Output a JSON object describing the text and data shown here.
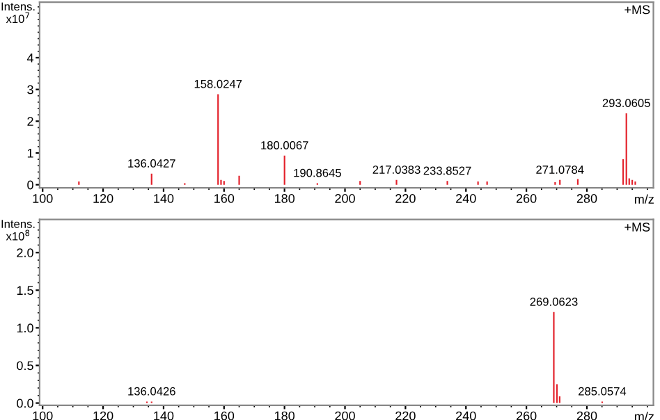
{
  "chart_data": [
    {
      "type": "bar",
      "color": "#e3212b",
      "x": [
        112,
        136.0427,
        147,
        158.0247,
        159,
        160,
        165,
        180.0067,
        190.8645,
        205,
        217.0383,
        233.8527,
        244,
        247,
        269.5,
        271.0784,
        277,
        292,
        293.0605,
        294,
        295,
        296
      ],
      "values": [
        0.1,
        0.35,
        0.05,
        2.85,
        0.15,
        0.12,
        0.28,
        0.92,
        0.05,
        0.12,
        0.15,
        0.12,
        0.1,
        0.1,
        0.08,
        0.15,
        0.18,
        0.8,
        2.25,
        0.2,
        0.15,
        0.1
      ],
      "xlim": [
        99,
        302
      ],
      "ylim": [
        -0.1,
        5.75
      ],
      "xticks": [
        100,
        120,
        140,
        160,
        180,
        200,
        220,
        240,
        260,
        280
      ],
      "yticks": [
        0,
        1,
        2,
        3,
        4
      ],
      "ylabel": "Intens.\nx10$^{7}$",
      "xlabel": "m/z",
      "annotations": [
        "+MS",
        {
          "text": "136.0427",
          "x": 136.0427,
          "y": 0.35
        },
        {
          "text": "158.0247",
          "x": 158.0247,
          "y": 2.85
        },
        {
          "text": "180.0067",
          "x": 180.0067,
          "y": 0.92
        },
        {
          "text": "190.8645",
          "x": 190.8645,
          "y": 0.05
        },
        {
          "text": "217.0383",
          "x": 217.0383,
          "y": 0.15
        },
        {
          "text": "233.8527",
          "x": 233.8527,
          "y": 0.12
        },
        {
          "text": "271.0784",
          "x": 271.0784,
          "y": 0.15
        },
        {
          "text": "293.0605",
          "x": 293.0605,
          "y": 2.25
        }
      ]
    },
    {
      "type": "bar",
      "color": "#e3212b",
      "x": [
        134.5,
        136.0426,
        269.0623,
        270.1,
        271.0,
        285.0574
      ],
      "values": [
        0.02,
        0.02,
        1.21,
        0.25,
        0.09,
        0.02
      ],
      "xlim": [
        99,
        302
      ],
      "ylim": [
        -0.03,
        2.44
      ],
      "xticks": [
        100,
        120,
        140,
        160,
        180,
        200,
        220,
        240,
        260,
        280
      ],
      "yticks": [
        {
          "value": 0,
          "label": "0.0"
        },
        {
          "value": 0.5,
          "label": "0.5"
        },
        {
          "value": 1,
          "label": "1.0"
        },
        {
          "value": 1.5,
          "label": "1.5"
        },
        {
          "value": 2,
          "label": "2.0"
        }
      ],
      "ylabel": "Intens.\nx10$^{8}$",
      "xlabel": "m/z",
      "annotations": [
        "+MS",
        {
          "text": "136.0426",
          "x": 136.0426,
          "y": 0.02
        },
        {
          "text": "269.0623",
          "x": 269.0623,
          "y": 1.21
        },
        {
          "text": "285.0574",
          "x": 285.0574,
          "y": 0.02
        }
      ]
    }
  ]
}
